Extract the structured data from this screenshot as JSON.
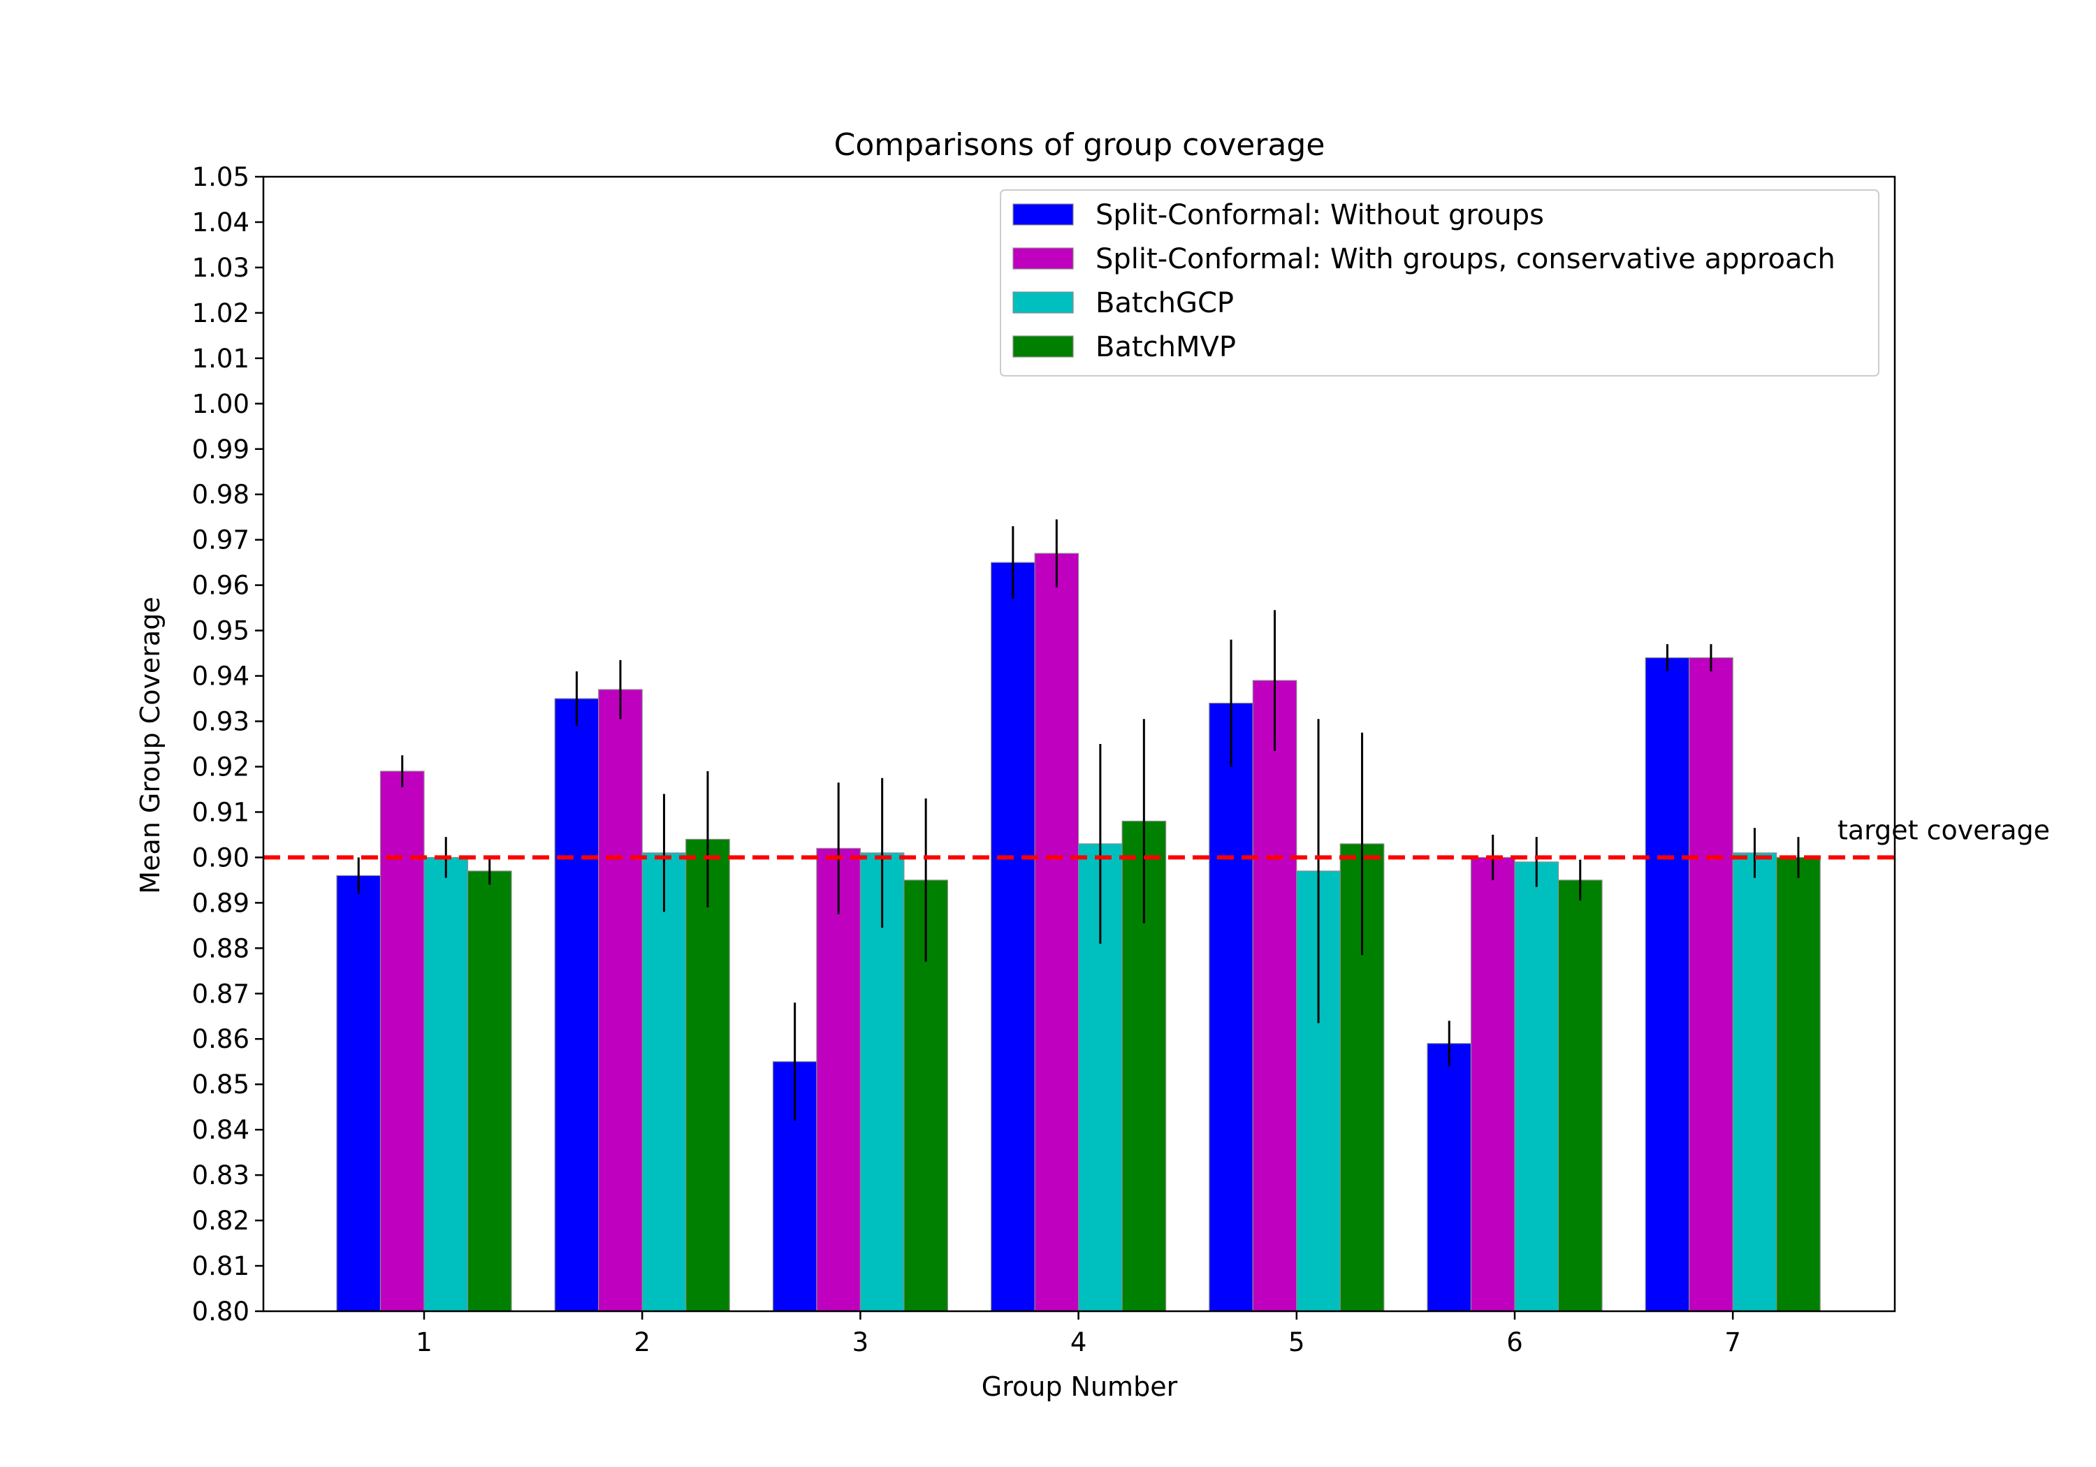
{
  "chart_data": {
    "type": "bar",
    "title": "Comparisons of group coverage",
    "xlabel": "Group Number",
    "ylabel": "Mean Group Coverage",
    "ylim": [
      0.8,
      1.05
    ],
    "yticks": [
      "0.80",
      "0.81",
      "0.82",
      "0.83",
      "0.84",
      "0.85",
      "0.86",
      "0.87",
      "0.88",
      "0.89",
      "0.90",
      "0.91",
      "0.92",
      "0.93",
      "0.94",
      "0.95",
      "0.96",
      "0.97",
      "0.98",
      "0.99",
      "1.00",
      "1.01",
      "1.02",
      "1.03",
      "1.04",
      "1.05"
    ],
    "categories": [
      "1",
      "2",
      "3",
      "4",
      "5",
      "6",
      "7"
    ],
    "grid": false,
    "legend_position": "top-right",
    "series": [
      {
        "name": "Split-Conformal: Without groups",
        "color": "#0000ff",
        "values": [
          0.896,
          0.935,
          0.855,
          0.965,
          0.934,
          0.859,
          0.944
        ],
        "errors": [
          0.004,
          0.006,
          0.013,
          0.008,
          0.014,
          0.005,
          0.003
        ]
      },
      {
        "name": "Split-Conformal: With groups, conservative approach",
        "color": "#bf00bf",
        "values": [
          0.919,
          0.937,
          0.902,
          0.967,
          0.939,
          0.9,
          0.944
        ],
        "errors": [
          0.0035,
          0.0065,
          0.0145,
          0.0075,
          0.0155,
          0.005,
          0.003
        ]
      },
      {
        "name": "BatchGCP",
        "color": "#00bfbf",
        "values": [
          0.9,
          0.901,
          0.901,
          0.903,
          0.897,
          0.899,
          0.901
        ],
        "errors": [
          0.0045,
          0.013,
          0.0165,
          0.022,
          0.0335,
          0.0055,
          0.0055
        ]
      },
      {
        "name": "BatchMVP",
        "color": "#008000",
        "values": [
          0.897,
          0.904,
          0.895,
          0.908,
          0.903,
          0.895,
          0.9
        ],
        "errors": [
          0.003,
          0.015,
          0.018,
          0.0225,
          0.0245,
          0.0045,
          0.0045
        ]
      }
    ],
    "target_line": {
      "value": 0.9,
      "color": "#ff0000",
      "label": "target coverage"
    }
  }
}
